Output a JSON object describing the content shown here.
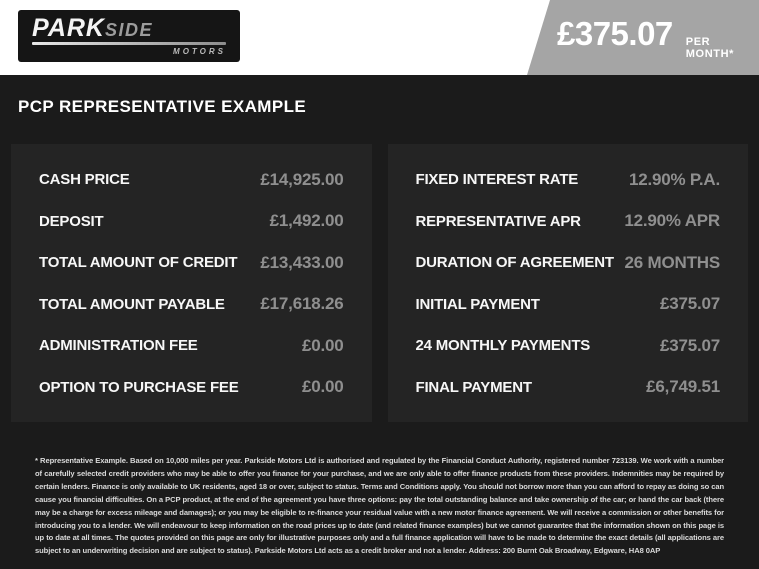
{
  "header": {
    "logo": {
      "name_part1": "PARK",
      "name_part2": "SIDE",
      "subtitle": "MOTORS"
    },
    "price": {
      "amount": "£375.07",
      "period": "PER MONTH*"
    }
  },
  "heading": "PCP REPRESENTATIVE EXAMPLE",
  "finance": {
    "left": [
      {
        "label": "CASH PRICE",
        "value": "£14,925.00"
      },
      {
        "label": "DEPOSIT",
        "value": "£1,492.00"
      },
      {
        "label": "TOTAL AMOUNT OF CREDIT",
        "value": "£13,433.00"
      },
      {
        "label": "TOTAL AMOUNT PAYABLE",
        "value": "£17,618.26"
      },
      {
        "label": "ADMINISTRATION FEE",
        "value": "£0.00"
      },
      {
        "label": "OPTION TO PURCHASE FEE",
        "value": "£0.00"
      }
    ],
    "right": [
      {
        "label": "FIXED INTEREST RATE",
        "value": "12.90% P.A."
      },
      {
        "label": "REPRESENTATIVE APR",
        "value": "12.90% APR"
      },
      {
        "label": "DURATION OF AGREEMENT",
        "value": "26 MONTHS"
      },
      {
        "label": "INITIAL PAYMENT",
        "value": "£375.07"
      },
      {
        "label": "24 MONTHLY PAYMENTS",
        "value": "£375.07"
      },
      {
        "label": "FINAL PAYMENT",
        "value": "£6,749.51"
      }
    ]
  },
  "disclaimer": "* Representative Example. Based on 10,000 miles per year. Parkside Motors Ltd is authorised and regulated by the Financial Conduct Authority, registered number 723139. We work with a number of carefully selected credit providers who may be able to offer you finance for your purchase, and we are only able to offer finance products from these providers. Indemnities may be required by certain lenders. Finance is only available to UK residents, aged 18 or over, subject to status. Terms and Conditions apply. You should not borrow more than you can afford to repay as doing so can cause you financial difficulties. On a PCP product, at the end of the agreement you have three options: pay the total outstanding balance and take ownership of the car; or hand the car back (there may be a charge for excess mileage and damages); or you may be eligible to re-finance your residual value with a new motor finance agreement. We will receive a commission or other benefits for introducing you to a lender. We will endeavour to keep information on the road prices up to date (and related finance examples) but we cannot guarantee that the information shown on this page is up to date at all times. The quotes provided on this page are only for illustrative purposes only and a full finance application will have to be made to determine the exact details (all applications are subject to an underwriting decision and are subject to status). Parkside Motors Ltd acts as a credit broker and not a lender. Address: 200 Burnt Oak Broadway, Edgware, HA8 0AP",
  "colors": {
    "header_bg": "#ffffff",
    "price_shape_bg": "#a5a5a5",
    "page_bg": "#1b1b1b",
    "panel_bg": "#242424",
    "label_text": "#f7f7f7",
    "value_text": "#8f8f8f"
  }
}
